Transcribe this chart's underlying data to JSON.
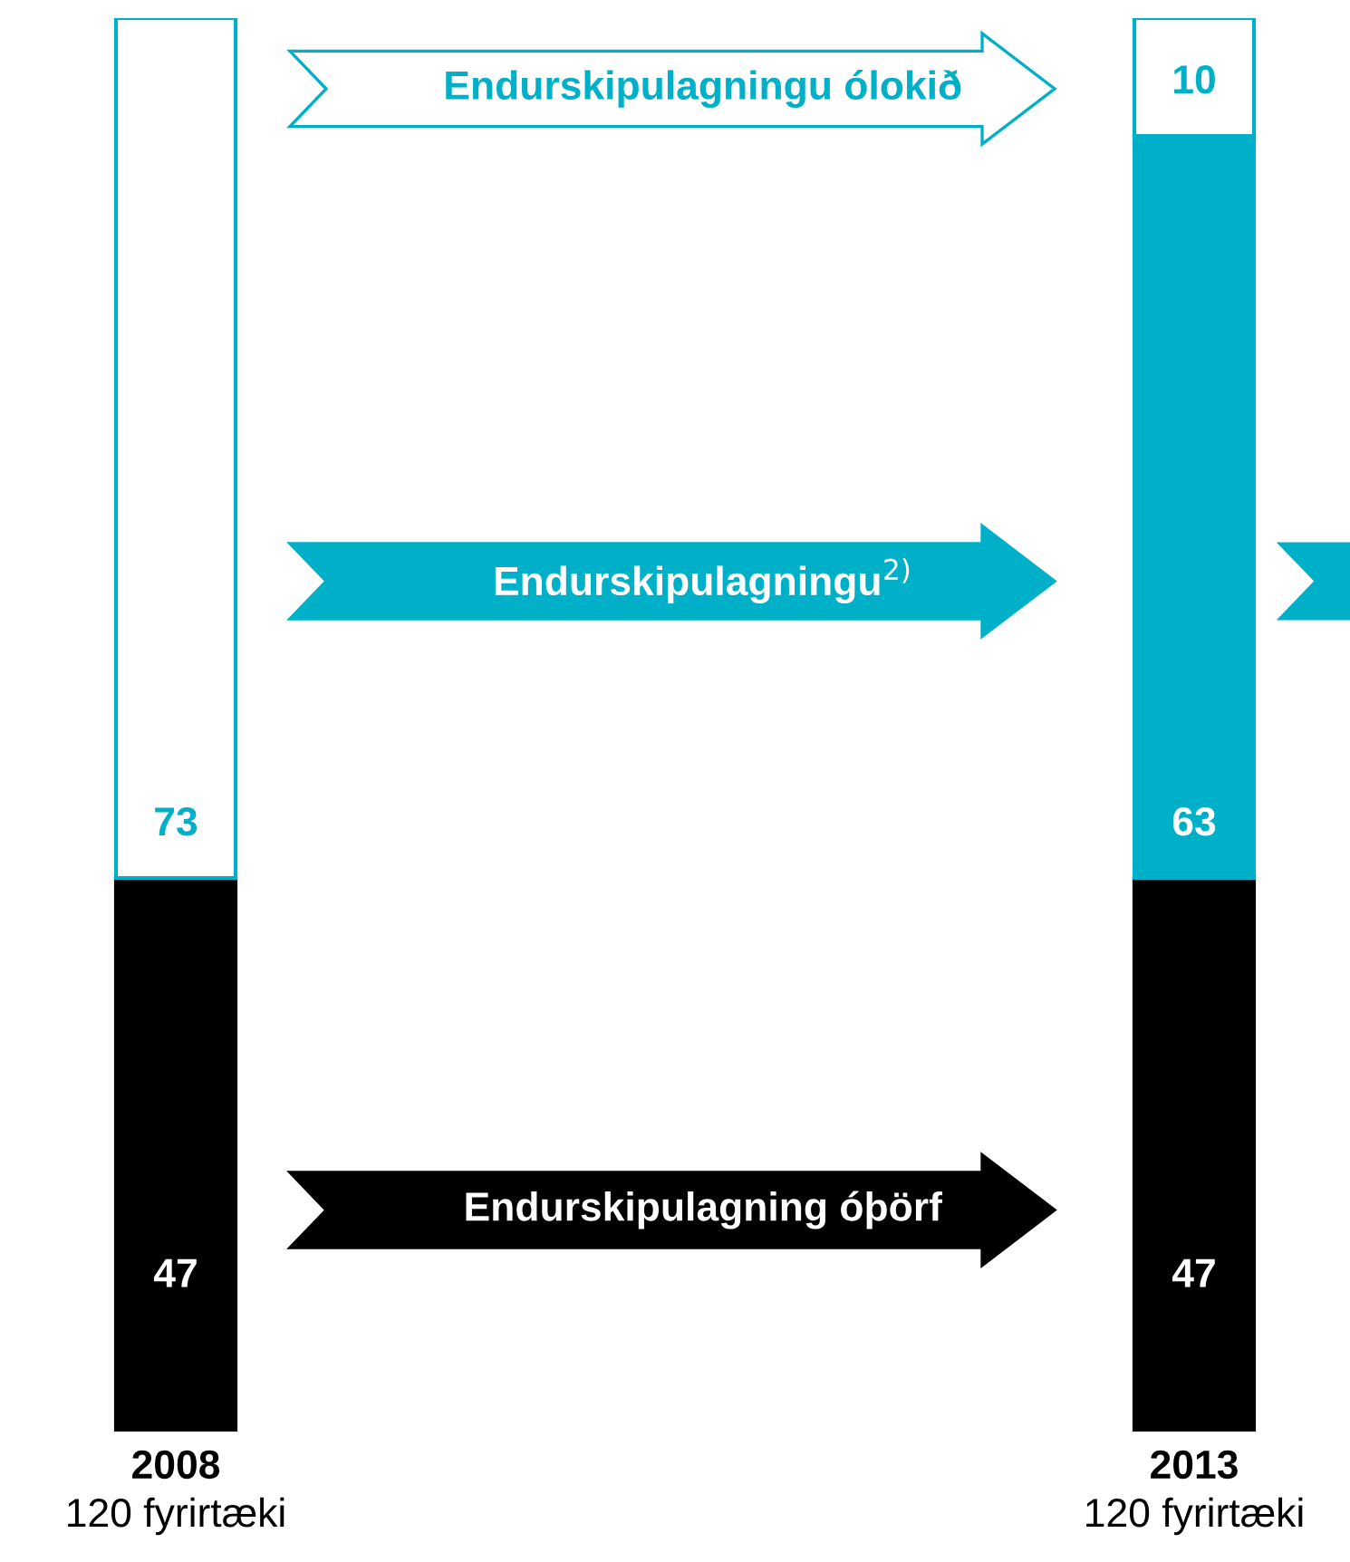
{
  "chart_data": {
    "type": "bar",
    "stacked": true,
    "data_labels": true,
    "categories": [
      "2008\n120 fyrirtæki",
      "2013\n120 fyrirtæki"
    ],
    "series": [
      {
        "color": "#000000",
        "values": [
          47,
          47
        ]
      },
      {
        "color": "#00b0c8",
        "values": [
          null,
          63
        ]
      },
      {
        "color": "#ffffff",
        "values": [
          73,
          10
        ]
      }
    ],
    "annotations": [
      "Endurskipulagningu ólokið",
      "Endurskipulagningu$^{2)}$",
      "Endurskipulagning óþörf"
    ],
    "legend": false
  }
}
